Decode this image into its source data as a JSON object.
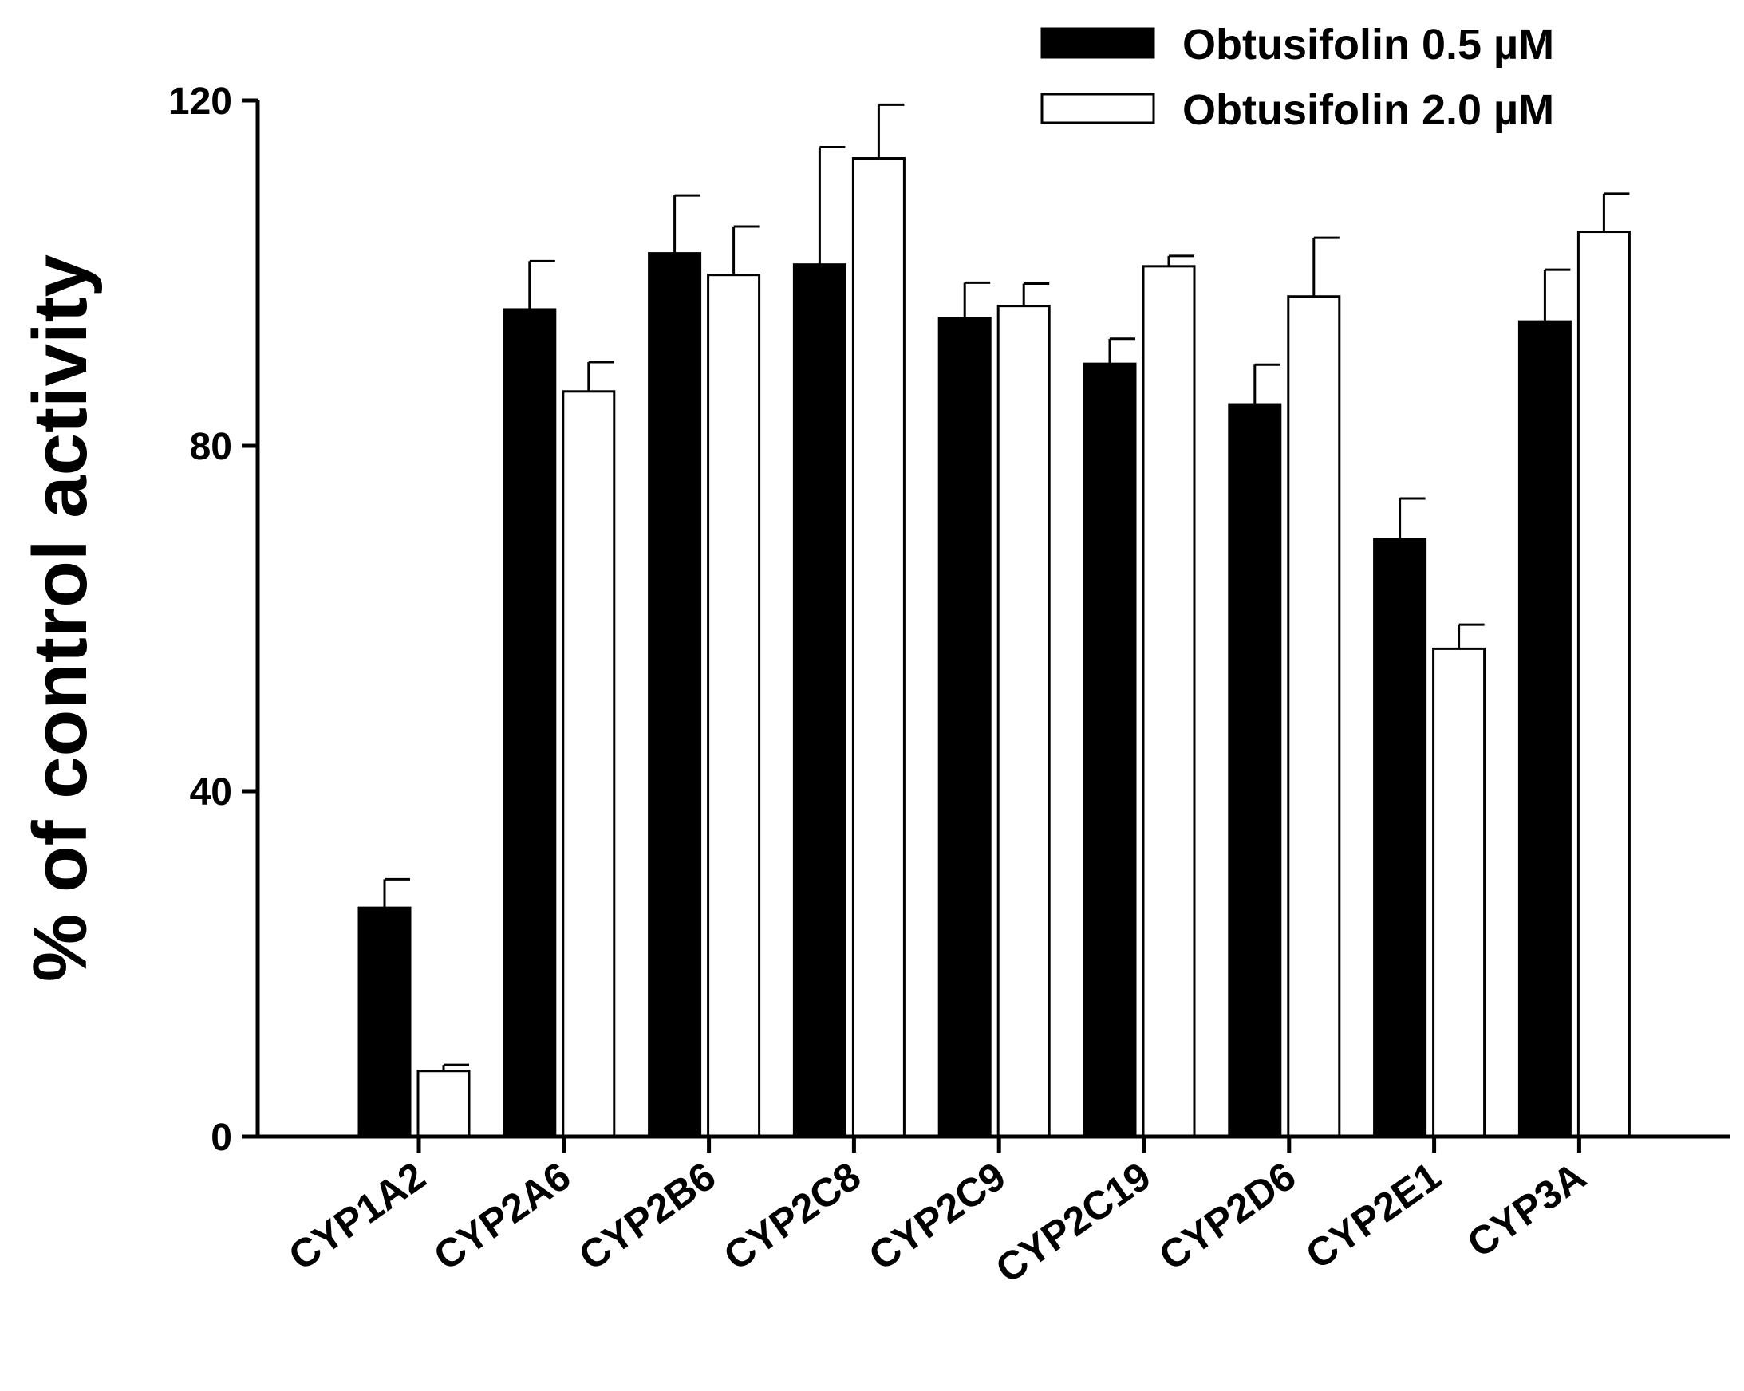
{
  "chart_data": {
    "type": "bar",
    "title": "",
    "xlabel": "",
    "ylabel": "% of control activity",
    "ylim": [
      0,
      120
    ],
    "yticks": [
      0,
      40,
      80,
      120
    ],
    "grid": false,
    "legend_position": "top-right",
    "categories": [
      "CYP1A2",
      "CYP2A6",
      "CYP2B6",
      "CYP2C8",
      "CYP2C9",
      "CYP2C19",
      "CYP2D6",
      "CYP2E1",
      "CYP3A"
    ],
    "series": [
      {
        "name": "Obtusifolin 0.5 µM",
        "fill": "#000000",
        "values": [
          26.5,
          95.8,
          102.3,
          101.0,
          94.8,
          89.5,
          84.8,
          69.2,
          94.4
        ],
        "errors": [
          3.3,
          5.6,
          6.7,
          13.6,
          4.1,
          2.9,
          4.6,
          4.7,
          6.0
        ]
      },
      {
        "name": "Obtusifolin 2.0 µM",
        "fill": "#ffffff",
        "values": [
          7.6,
          86.3,
          99.8,
          113.3,
          96.2,
          100.8,
          97.3,
          56.5,
          104.8
        ],
        "errors": [
          0.7,
          3.4,
          5.6,
          6.2,
          2.6,
          1.2,
          6.8,
          2.8,
          4.4
        ]
      }
    ]
  }
}
